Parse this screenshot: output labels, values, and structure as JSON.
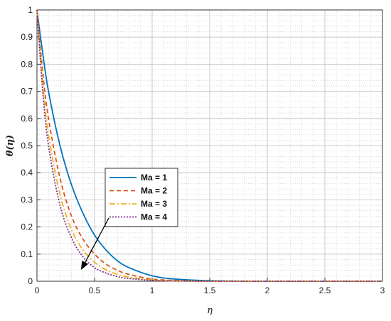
{
  "chart_data": {
    "type": "line",
    "xlabel": "η",
    "ylabel": "θ(η)",
    "xlim": [
      0,
      3
    ],
    "ylim": [
      0,
      1
    ],
    "xticks": [
      "0",
      "0.5",
      "1",
      "1.5",
      "2",
      "2.5",
      "3"
    ],
    "yticks": [
      "0",
      "0.1",
      "0.2",
      "0.3",
      "0.4",
      "0.5",
      "0.6",
      "0.7",
      "0.8",
      "0.9",
      "1"
    ],
    "grid": "major and minor (dotted)",
    "legend_position": "center-left",
    "annotation": "arrow pointing toward curves indicating increasing Ma",
    "series": [
      {
        "name": "Ma = 1",
        "color": "#0072BD",
        "dash": "solid",
        "x": [
          0,
          0.05,
          0.1,
          0.2,
          0.3,
          0.4,
          0.5,
          0.6,
          0.7,
          0.8,
          1.0,
          1.2,
          1.5,
          2.0,
          2.5,
          3.0
        ],
        "y": [
          1.0,
          0.84,
          0.7,
          0.5,
          0.355,
          0.25,
          0.17,
          0.115,
          0.075,
          0.05,
          0.02,
          0.008,
          0.002,
          0.0,
          0.0,
          0.0
        ]
      },
      {
        "name": "Ma = 2",
        "color": "#D95319",
        "dash": "6,4",
        "x": [
          0,
          0.05,
          0.1,
          0.2,
          0.3,
          0.4,
          0.5,
          0.6,
          0.7,
          0.8,
          1.0,
          1.2,
          1.5,
          2.0,
          2.5,
          3.0
        ],
        "y": [
          1.0,
          0.77,
          0.6,
          0.38,
          0.24,
          0.155,
          0.1,
          0.063,
          0.04,
          0.025,
          0.008,
          0.003,
          0.0,
          0.0,
          0.0,
          0.0
        ]
      },
      {
        "name": "Ma = 3",
        "color": "#EDB120",
        "dash": "8,3,2,3",
        "x": [
          0,
          0.05,
          0.1,
          0.2,
          0.3,
          0.4,
          0.5,
          0.6,
          0.7,
          0.8,
          1.0,
          1.2,
          1.5,
          2.0,
          2.5,
          3.0
        ],
        "y": [
          1.0,
          0.73,
          0.54,
          0.32,
          0.19,
          0.115,
          0.07,
          0.042,
          0.025,
          0.015,
          0.005,
          0.001,
          0.0,
          0.0,
          0.0,
          0.0
        ]
      },
      {
        "name": "Ma = 4",
        "color": "#7E2F8E",
        "dash": "2,2",
        "x": [
          0,
          0.05,
          0.1,
          0.2,
          0.3,
          0.4,
          0.5,
          0.6,
          0.7,
          0.8,
          1.0,
          1.2,
          1.5,
          2.0,
          2.5,
          3.0
        ],
        "y": [
          1.0,
          0.7,
          0.5,
          0.28,
          0.16,
          0.09,
          0.05,
          0.03,
          0.017,
          0.01,
          0.003,
          0.001,
          0.0,
          0.0,
          0.0,
          0.0
        ]
      }
    ]
  }
}
